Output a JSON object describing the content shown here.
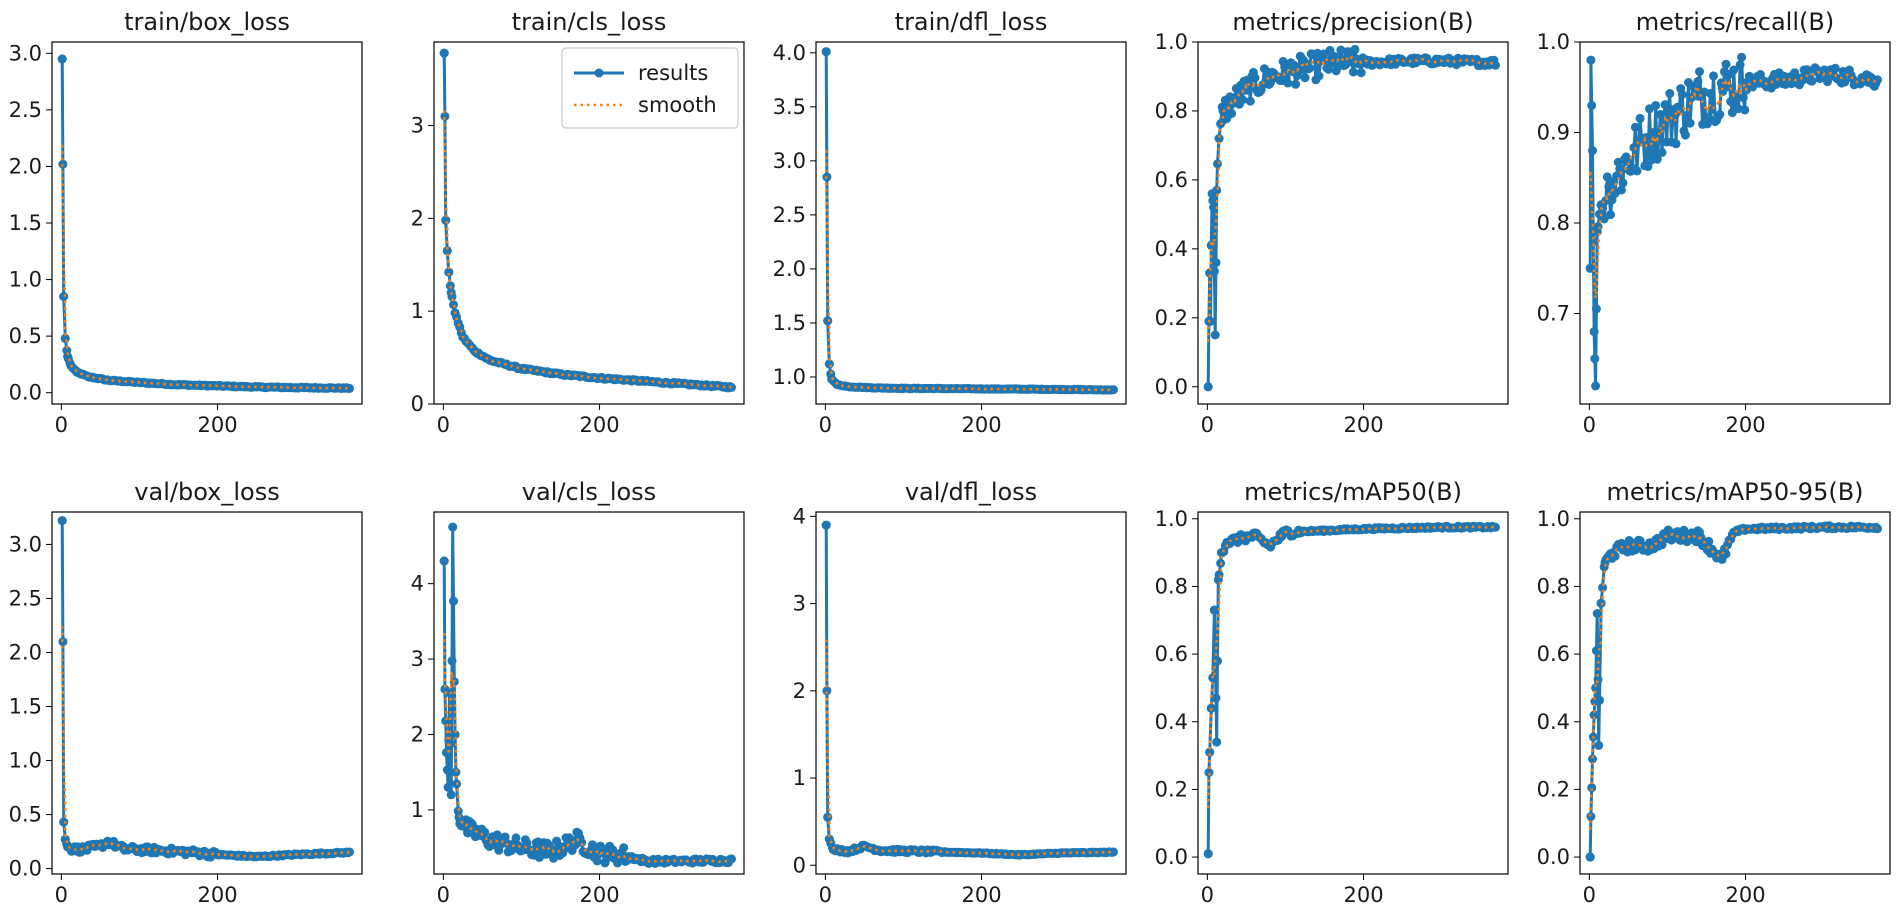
{
  "colors": {
    "results": "#1f77b4",
    "smooth": "#ff7f0e"
  },
  "legend": {
    "results_label": "results",
    "smooth_label": "smooth",
    "placement": "top-right of train/cls_loss"
  },
  "chart_data": [
    {
      "type": "line",
      "title": "train/box_loss",
      "xlim": [
        -12,
        385
      ],
      "ylim": [
        -0.1,
        3.1
      ],
      "xticks": [
        0,
        200
      ],
      "yticks": [
        0.0,
        0.5,
        1.0,
        1.5,
        2.0,
        2.5,
        3.0
      ],
      "ytick_labels": [
        "0.0",
        "0.5",
        "1.0",
        "1.5",
        "2.0",
        "2.5",
        "3.0"
      ],
      "xtick_labels": [
        "0",
        "200"
      ],
      "x_range": [
        1,
        370
      ],
      "key_points": [
        [
          1,
          2.95
        ],
        [
          2,
          2.02
        ],
        [
          3,
          0.85
        ],
        [
          5,
          0.48
        ],
        [
          8,
          0.32
        ],
        [
          12,
          0.24
        ],
        [
          20,
          0.18
        ],
        [
          35,
          0.14
        ],
        [
          60,
          0.11
        ],
        [
          100,
          0.09
        ],
        [
          150,
          0.07
        ],
        [
          200,
          0.06
        ],
        [
          250,
          0.05
        ],
        [
          300,
          0.045
        ],
        [
          370,
          0.04
        ]
      ],
      "noise": 0.005
    },
    {
      "type": "line",
      "title": "train/cls_loss",
      "xlim": [
        -12,
        385
      ],
      "ylim": [
        0,
        3.9
      ],
      "xticks": [
        0,
        200
      ],
      "yticks": [
        0,
        1,
        2,
        3
      ],
      "ytick_labels": [
        "0",
        "1",
        "2",
        "3"
      ],
      "xtick_labels": [
        "0",
        "200"
      ],
      "x_range": [
        1,
        370
      ],
      "key_points": [
        [
          1,
          3.78
        ],
        [
          2,
          3.1
        ],
        [
          3,
          1.98
        ],
        [
          5,
          1.65
        ],
        [
          7,
          1.42
        ],
        [
          10,
          1.2
        ],
        [
          15,
          0.98
        ],
        [
          25,
          0.72
        ],
        [
          40,
          0.57
        ],
        [
          60,
          0.47
        ],
        [
          100,
          0.38
        ],
        [
          150,
          0.32
        ],
        [
          200,
          0.28
        ],
        [
          250,
          0.25
        ],
        [
          300,
          0.22
        ],
        [
          370,
          0.18
        ]
      ],
      "noise": 0.01
    },
    {
      "type": "line",
      "title": "train/dfl_loss",
      "xlim": [
        -12,
        385
      ],
      "ylim": [
        0.75,
        4.1
      ],
      "xticks": [
        0,
        200
      ],
      "yticks": [
        1.0,
        1.5,
        2.0,
        2.5,
        3.0,
        3.5,
        4.0
      ],
      "ytick_labels": [
        "1.0",
        "1.5",
        "2.0",
        "2.5",
        "3.0",
        "3.5",
        "4.0"
      ],
      "xtick_labels": [
        "0",
        "200"
      ],
      "x_range": [
        1,
        370
      ],
      "key_points": [
        [
          1,
          4.01
        ],
        [
          2,
          2.85
        ],
        [
          3,
          1.52
        ],
        [
          5,
          1.12
        ],
        [
          8,
          0.98
        ],
        [
          15,
          0.93
        ],
        [
          30,
          0.91
        ],
        [
          60,
          0.9
        ],
        [
          100,
          0.895
        ],
        [
          200,
          0.89
        ],
        [
          300,
          0.885
        ],
        [
          370,
          0.88
        ]
      ],
      "noise": 0.003
    },
    {
      "type": "line",
      "title": "metrics/precision(B)",
      "xlim": [
        -12,
        385
      ],
      "ylim": [
        -0.05,
        1.0
      ],
      "xticks": [
        0,
        200
      ],
      "yticks": [
        0.0,
        0.2,
        0.4,
        0.6,
        0.8,
        1.0
      ],
      "ytick_labels": [
        "0.0",
        "0.2",
        "0.4",
        "0.6",
        "0.8",
        "1.0"
      ],
      "xtick_labels": [
        "0",
        "200"
      ],
      "x_range": [
        1,
        370
      ],
      "key_points": [
        [
          1,
          0.0
        ],
        [
          2,
          0.19
        ],
        [
          3,
          0.33
        ],
        [
          4,
          0.19
        ],
        [
          5,
          0.41
        ],
        [
          6,
          0.56
        ],
        [
          8,
          0.52
        ],
        [
          10,
          0.15
        ],
        [
          12,
          0.57
        ],
        [
          15,
          0.72
        ],
        [
          20,
          0.8
        ],
        [
          30,
          0.82
        ],
        [
          50,
          0.86
        ],
        [
          80,
          0.9
        ],
        [
          120,
          0.92
        ],
        [
          160,
          0.94
        ],
        [
          200,
          0.94
        ],
        [
          260,
          0.945
        ],
        [
          300,
          0.945
        ],
        [
          370,
          0.94
        ]
      ],
      "noise": 0.04,
      "noise_until": 200
    },
    {
      "type": "line",
      "title": "metrics/recall(B)",
      "xlim": [
        -12,
        385
      ],
      "ylim": [
        0.6,
        1.0
      ],
      "xticks": [
        0,
        200
      ],
      "yticks": [
        0.7,
        0.8,
        0.9,
        1.0
      ],
      "ytick_labels": [
        "0.7",
        "0.8",
        "0.9",
        "1.0"
      ],
      "xtick_labels": [
        "0",
        "200"
      ],
      "x_range": [
        1,
        370
      ],
      "key_points": [
        [
          1,
          0.75
        ],
        [
          2,
          0.98
        ],
        [
          4,
          0.88
        ],
        [
          6,
          0.68
        ],
        [
          8,
          0.62
        ],
        [
          10,
          0.79
        ],
        [
          15,
          0.82
        ],
        [
          25,
          0.84
        ],
        [
          50,
          0.87
        ],
        [
          80,
          0.9
        ],
        [
          110,
          0.92
        ],
        [
          140,
          0.94
        ],
        [
          170,
          0.95
        ],
        [
          200,
          0.955
        ],
        [
          250,
          0.958
        ],
        [
          300,
          0.965
        ],
        [
          370,
          0.958
        ]
      ],
      "noise": 0.035,
      "noise_until": 200
    },
    {
      "type": "line",
      "title": "val/box_loss",
      "xlim": [
        -12,
        385
      ],
      "ylim": [
        -0.05,
        3.3
      ],
      "xticks": [
        0,
        200
      ],
      "yticks": [
        0.0,
        0.5,
        1.0,
        1.5,
        2.0,
        2.5,
        3.0
      ],
      "ytick_labels": [
        "0.0",
        "0.5",
        "1.0",
        "1.5",
        "2.0",
        "2.5",
        "3.0"
      ],
      "xtick_labels": [
        "0",
        "200"
      ],
      "x_range": [
        1,
        370
      ],
      "key_points": [
        [
          1,
          3.22
        ],
        [
          2,
          2.1
        ],
        [
          3,
          0.43
        ],
        [
          5,
          0.27
        ],
        [
          8,
          0.2
        ],
        [
          15,
          0.18
        ],
        [
          30,
          0.18
        ],
        [
          50,
          0.21
        ],
        [
          60,
          0.25
        ],
        [
          80,
          0.18
        ],
        [
          120,
          0.17
        ],
        [
          170,
          0.15
        ],
        [
          200,
          0.13
        ],
        [
          250,
          0.11
        ],
        [
          300,
          0.13
        ],
        [
          370,
          0.15
        ]
      ],
      "noise": 0.03,
      "noise_until": 200
    },
    {
      "type": "line",
      "title": "val/cls_loss",
      "xlim": [
        -12,
        385
      ],
      "ylim": [
        0.15,
        4.95
      ],
      "xticks": [
        0,
        200
      ],
      "yticks": [
        1,
        2,
        3,
        4
      ],
      "ytick_labels": [
        "1",
        "2",
        "3",
        "4"
      ],
      "xtick_labels": [
        "0",
        "200"
      ],
      "x_range": [
        1,
        370
      ],
      "key_points": [
        [
          1,
          4.3
        ],
        [
          2,
          2.6
        ],
        [
          4,
          1.76
        ],
        [
          6,
          1.3
        ],
        [
          8,
          2.55
        ],
        [
          10,
          1.2
        ],
        [
          12,
          4.75
        ],
        [
          14,
          2.7
        ],
        [
          16,
          1.5
        ],
        [
          20,
          0.9
        ],
        [
          30,
          0.75
        ],
        [
          60,
          0.6
        ],
        [
          100,
          0.5
        ],
        [
          140,
          0.45
        ],
        [
          170,
          0.6
        ],
        [
          200,
          0.42
        ],
        [
          230,
          0.4
        ],
        [
          260,
          0.32
        ],
        [
          300,
          0.32
        ],
        [
          370,
          0.33
        ]
      ],
      "noise": 0.12,
      "noise_until": 240
    },
    {
      "type": "line",
      "title": "val/dfl_loss",
      "xlim": [
        -12,
        385
      ],
      "ylim": [
        -0.1,
        4.05
      ],
      "xticks": [
        0,
        200
      ],
      "yticks": [
        0,
        1,
        2,
        3,
        4
      ],
      "ytick_labels": [
        "0",
        "1",
        "2",
        "3",
        "4"
      ],
      "xtick_labels": [
        "0",
        "200"
      ],
      "x_range": [
        1,
        370
      ],
      "key_points": [
        [
          1,
          3.9
        ],
        [
          2,
          2.0
        ],
        [
          3,
          0.55
        ],
        [
          5,
          0.3
        ],
        [
          10,
          0.18
        ],
        [
          30,
          0.16
        ],
        [
          50,
          0.22
        ],
        [
          70,
          0.17
        ],
        [
          120,
          0.16
        ],
        [
          200,
          0.14
        ],
        [
          250,
          0.12
        ],
        [
          300,
          0.14
        ],
        [
          370,
          0.15
        ]
      ],
      "noise": 0.02,
      "noise_until": 150
    },
    {
      "type": "line",
      "title": "metrics/mAP50(B)",
      "xlim": [
        -12,
        385
      ],
      "ylim": [
        -0.05,
        1.02
      ],
      "xticks": [
        0,
        200
      ],
      "yticks": [
        0.0,
        0.2,
        0.4,
        0.6,
        0.8,
        1.0
      ],
      "ytick_labels": [
        "0.0",
        "0.2",
        "0.4",
        "0.6",
        "0.8",
        "1.0"
      ],
      "xtick_labels": [
        "0",
        "200"
      ],
      "x_range": [
        1,
        370
      ],
      "key_points": [
        [
          1,
          0.01
        ],
        [
          2,
          0.25
        ],
        [
          3,
          0.31
        ],
        [
          5,
          0.44
        ],
        [
          7,
          0.53
        ],
        [
          9,
          0.73
        ],
        [
          12,
          0.34
        ],
        [
          14,
          0.82
        ],
        [
          18,
          0.9
        ],
        [
          25,
          0.93
        ],
        [
          40,
          0.94
        ],
        [
          60,
          0.95
        ],
        [
          80,
          0.92
        ],
        [
          100,
          0.96
        ],
        [
          200,
          0.97
        ],
        [
          300,
          0.975
        ],
        [
          370,
          0.975
        ]
      ],
      "noise": 0.012,
      "noise_until": 120
    },
    {
      "type": "line",
      "title": "metrics/mAP50-95(B)",
      "xlim": [
        -12,
        385
      ],
      "ylim": [
        -0.05,
        1.02
      ],
      "xticks": [
        0,
        200
      ],
      "yticks": [
        0.0,
        0.2,
        0.4,
        0.6,
        0.8,
        1.0
      ],
      "ytick_labels": [
        "0.0",
        "0.2",
        "0.4",
        "0.6",
        "0.8",
        "1.0"
      ],
      "xtick_labels": [
        "0",
        "200"
      ],
      "x_range": [
        1,
        370
      ],
      "key_points": [
        [
          1,
          0.0
        ],
        [
          2,
          0.12
        ],
        [
          4,
          0.29
        ],
        [
          6,
          0.42
        ],
        [
          8,
          0.5
        ],
        [
          10,
          0.72
        ],
        [
          12,
          0.33
        ],
        [
          15,
          0.75
        ],
        [
          20,
          0.87
        ],
        [
          30,
          0.9
        ],
        [
          50,
          0.92
        ],
        [
          80,
          0.92
        ],
        [
          100,
          0.95
        ],
        [
          140,
          0.95
        ],
        [
          170,
          0.88
        ],
        [
          185,
          0.96
        ],
        [
          200,
          0.97
        ],
        [
          300,
          0.975
        ],
        [
          370,
          0.975
        ]
      ],
      "noise": 0.018,
      "noise_until": 180
    }
  ]
}
